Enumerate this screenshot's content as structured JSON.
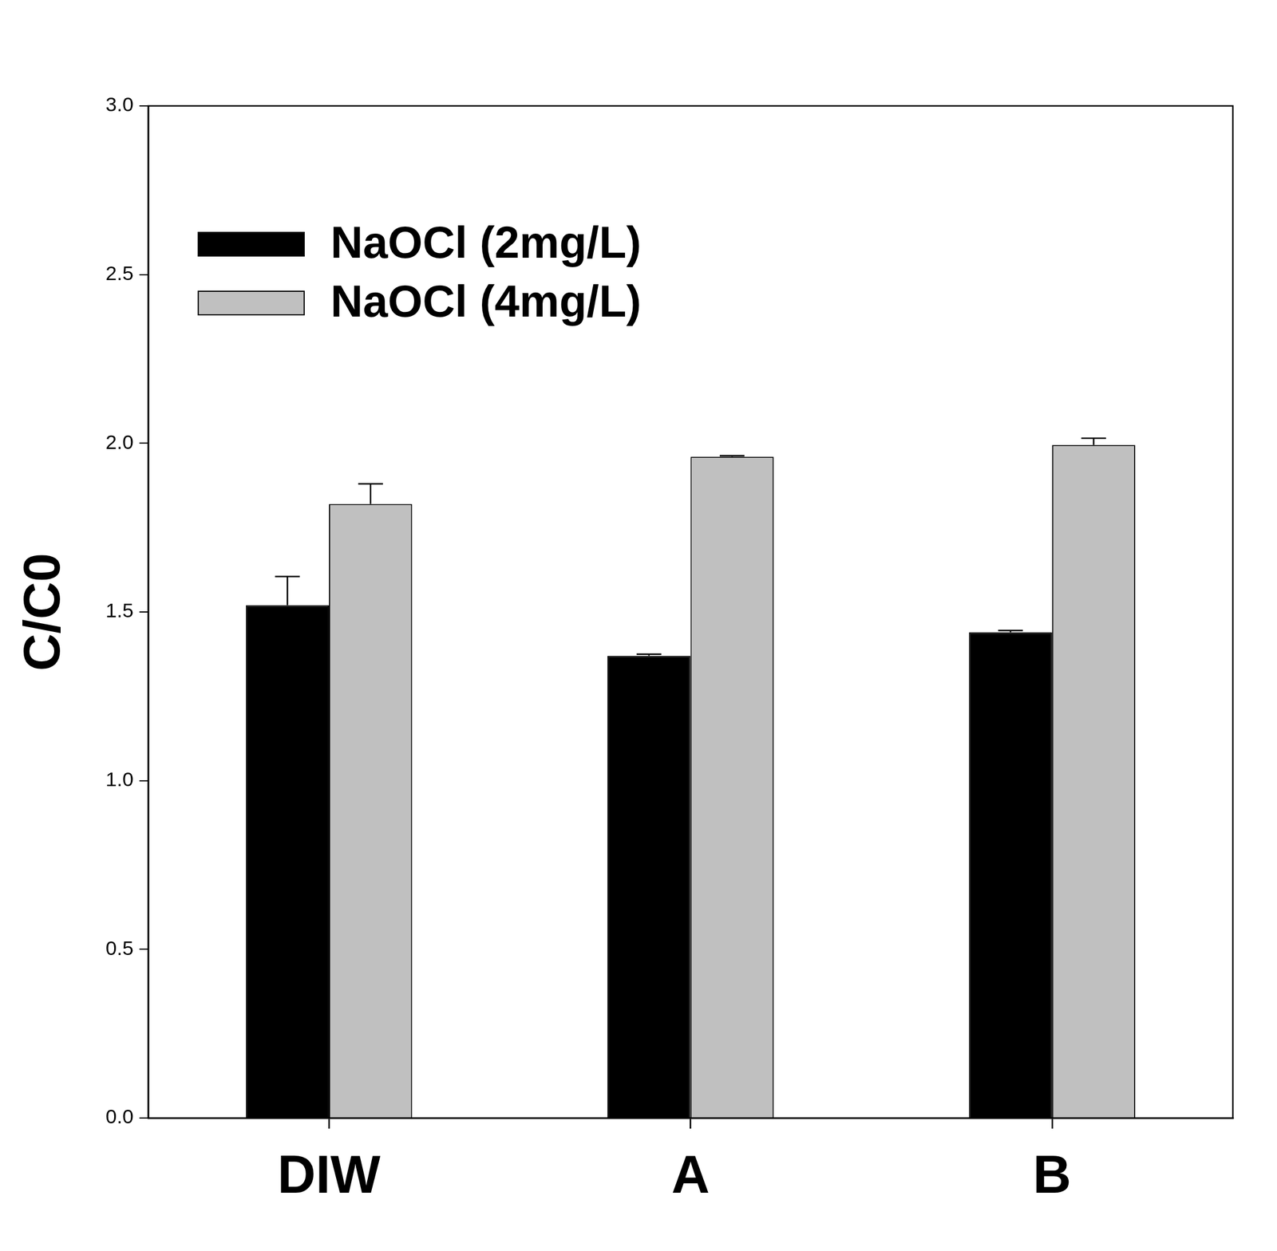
{
  "chart_data": {
    "type": "bar",
    "categories": [
      "DIW",
      "A",
      "B"
    ],
    "y_label": "C/C0",
    "series": [
      {
        "name": "NaOCl (2mg/L)",
        "color": "#000000",
        "values": [
          1.52,
          1.37,
          1.44
        ],
        "errors": [
          0.085,
          0.005,
          0.005
        ]
      },
      {
        "name": "NaOCl (4mg/L)",
        "color": "#c0c0c0",
        "values": [
          1.82,
          1.96,
          1.995
        ],
        "errors": [
          0.06,
          0.003,
          0.02
        ]
      }
    ],
    "ylim": [
      0,
      3
    ],
    "yticks": [
      {
        "value": 0,
        "label": "0.0"
      },
      0.5,
      {
        "value": 1,
        "label": "1.0"
      },
      1.5,
      {
        "value": 2,
        "label": "2.0"
      },
      2.5,
      {
        "value": 3,
        "label": "3.0"
      }
    ],
    "legend": "upper left",
    "grid": false
  }
}
